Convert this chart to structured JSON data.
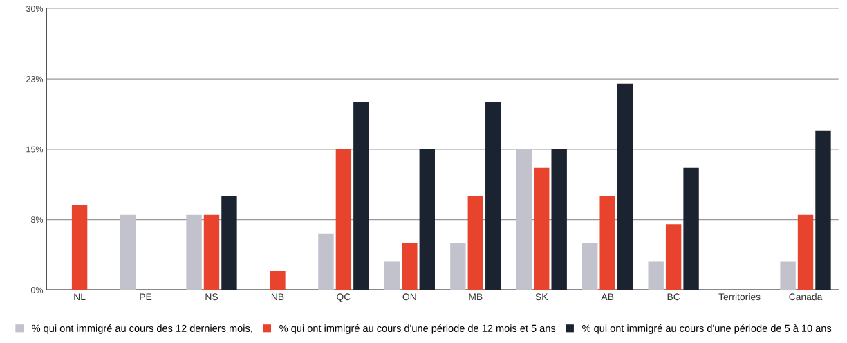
{
  "chart_data": {
    "type": "bar",
    "categories": [
      "NL",
      "PE",
      "NS",
      "NB",
      "QC",
      "ON",
      "MB",
      "SK",
      "AB",
      "BC",
      "Territories",
      "Canada"
    ],
    "series": [
      {
        "name": "% qui ont immigré au cours des 12 derniers mois,",
        "color": "#c1c2cc",
        "values": [
          null,
          8,
          8,
          null,
          6,
          3,
          5,
          15,
          5,
          3,
          null,
          3
        ]
      },
      {
        "name": "% qui ont immigré au cours d'une période de 12 mois et 5 ans",
        "color": "#e8432d",
        "values": [
          9,
          null,
          8,
          2,
          15,
          5,
          10,
          13,
          10,
          7,
          null,
          8
        ]
      },
      {
        "name": "% qui ont immigré au cours d'une période de 5 à 10 ans",
        "color": "#1c2330",
        "values": [
          null,
          null,
          10,
          null,
          20,
          15,
          20,
          15,
          22,
          13,
          null,
          17
        ]
      }
    ],
    "ylim": [
      0,
      30
    ],
    "yticks": [
      {
        "value": 0,
        "label": "0%"
      },
      {
        "value": 7.5,
        "label": "8%"
      },
      {
        "value": 15,
        "label": "15%"
      },
      {
        "value": 22.5,
        "label": "23%"
      },
      {
        "value": 30,
        "label": "30%"
      }
    ],
    "grid": "y",
    "legend": "bottom"
  }
}
